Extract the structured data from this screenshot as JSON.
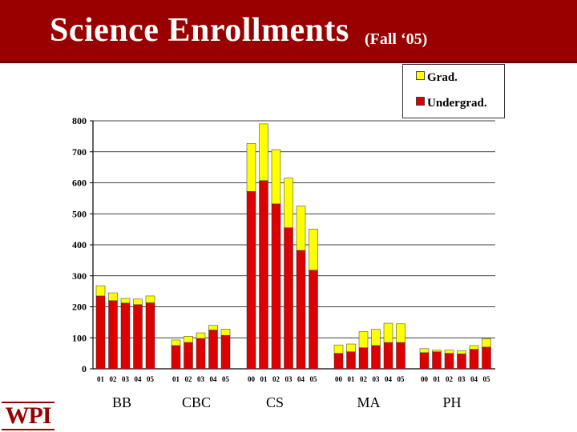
{
  "slide": {
    "title": "Science Enrollments",
    "subtitle": "(Fall ‘05)",
    "logo_text": "WPI",
    "colors": {
      "title_bar": "#990000",
      "grad": "#ffff00",
      "undergrad": "#dd0000"
    }
  },
  "chart_data": {
    "type": "bar",
    "stacked": true,
    "title": "Science Enrollments (Fall ‘05)",
    "xlabel": "",
    "ylabel": "",
    "ylim": [
      0,
      800
    ],
    "yticks": [
      0,
      100,
      200,
      300,
      400,
      500,
      600,
      700,
      800
    ],
    "grid": true,
    "legend": {
      "position": "top-right",
      "entries": [
        {
          "label": "Grad.",
          "color": "#ffff00"
        },
        {
          "label": "Undergrad.",
          "color": "#dd0000"
        }
      ]
    },
    "groups": [
      {
        "name": "BB",
        "categories": [
          "01",
          "02",
          "03",
          "04",
          "05"
        ],
        "undergrad": [
          235,
          220,
          212,
          207,
          213
        ],
        "grad": [
          33,
          25,
          15,
          18,
          22
        ]
      },
      {
        "name": "CBC",
        "categories": [
          "01",
          "02",
          "03",
          "04",
          "05"
        ],
        "undergrad": [
          75,
          85,
          98,
          125,
          108
        ],
        "grad": [
          18,
          20,
          18,
          15,
          20
        ]
      },
      {
        "name": "CS",
        "categories": [
          "00",
          "01",
          "02",
          "03",
          "04",
          "05"
        ],
        "undergrad": [
          572,
          607,
          532,
          455,
          382,
          318
        ],
        "grad": [
          155,
          183,
          175,
          160,
          143,
          133
        ]
      },
      {
        "name": "MA",
        "categories": [
          "00",
          "01",
          "02",
          "03",
          "04",
          "05"
        ],
        "undergrad": [
          50,
          55,
          68,
          75,
          85,
          85
        ],
        "grad": [
          27,
          25,
          52,
          52,
          62,
          60
        ]
      },
      {
        "name": "PH",
        "categories": [
          "00",
          "01",
          "02",
          "03",
          "04",
          "05"
        ],
        "undergrad": [
          52,
          55,
          50,
          48,
          63,
          70
        ],
        "grad": [
          13,
          5,
          10,
          10,
          12,
          27
        ]
      }
    ]
  }
}
